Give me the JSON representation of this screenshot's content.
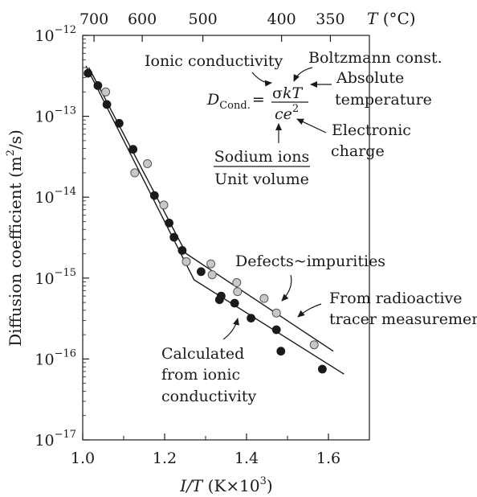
{
  "chart_data": {
    "type": "scatter",
    "title": "",
    "xlabel": "I/T (K×10³)",
    "xlabel_parts": {
      "var": "I/T",
      "unit_pre": " (K×10",
      "unit_sup": "3",
      "unit_post": ")"
    },
    "ylabel": "Diffusion coefficient (m²/s)",
    "ylabel_parts": {
      "pre": "Diffusion coefficient (m",
      "sup": "2",
      "post": "/s)"
    },
    "top_axis_label": "T (°C)",
    "top_axis_label_parts": {
      "var": "T",
      "unit": " (°C)"
    },
    "x_scale": "linear",
    "y_scale": "log",
    "xlim": [
      1.0,
      1.7
    ],
    "ylim": [
      1e-17,
      1e-12
    ],
    "x_ticks": [
      {
        "value": 1.0,
        "label": "1.0"
      },
      {
        "value": 1.2,
        "label": "1.2"
      },
      {
        "value": 1.4,
        "label": "1.4"
      },
      {
        "value": 1.6,
        "label": "1.6"
      }
    ],
    "y_ticks": [
      {
        "value": 1e-12,
        "base": "10",
        "exp": "−12"
      },
      {
        "value": 1e-13,
        "base": "10",
        "exp": "−13"
      },
      {
        "value": 1e-14,
        "base": "10",
        "exp": "−14"
      },
      {
        "value": 1e-15,
        "base": "10",
        "exp": "−15"
      },
      {
        "value": 1e-16,
        "base": "10",
        "exp": "−16"
      },
      {
        "value": 1e-17,
        "base": "10",
        "exp": "−17"
      }
    ],
    "top_ticks": [
      {
        "celsius": 700,
        "label": "700"
      },
      {
        "celsius": 600,
        "label": "600"
      },
      {
        "celsius": 500,
        "label": "500"
      },
      {
        "celsius": 400,
        "label": "400"
      },
      {
        "celsius": 350,
        "label": "350"
      }
    ],
    "grid": false,
    "series": [
      {
        "name": "From radioactive tracer measurement",
        "marker": "open-gray-circle",
        "color": "#c8c8c8",
        "points": [
          {
            "x": 1.056,
            "y": 2e-13
          },
          {
            "x": 1.127,
            "y": 2e-14
          },
          {
            "x": 1.158,
            "y": 2.6e-14
          },
          {
            "x": 1.198,
            "y": 8e-15
          },
          {
            "x": 1.253,
            "y": 1.6e-15
          },
          {
            "x": 1.313,
            "y": 1.5e-15
          },
          {
            "x": 1.316,
            "y": 1.1e-15
          },
          {
            "x": 1.376,
            "y": 8.8e-16
          },
          {
            "x": 1.378,
            "y": 6.8e-16
          },
          {
            "x": 1.443,
            "y": 5.6e-16
          },
          {
            "x": 1.473,
            "y": 3.7e-16
          },
          {
            "x": 1.565,
            "y": 1.5e-16
          }
        ]
      },
      {
        "name": "Calculated from ionic conductivity",
        "marker": "filled-black-circle",
        "color": "#1a1a1a",
        "points": [
          {
            "x": 1.013,
            "y": 3.4e-13
          },
          {
            "x": 1.037,
            "y": 2.4e-13
          },
          {
            "x": 1.059,
            "y": 1.4e-13
          },
          {
            "x": 1.089,
            "y": 8.2e-14
          },
          {
            "x": 1.123,
            "y": 3.9e-14
          },
          {
            "x": 1.175,
            "y": 1.05e-14
          },
          {
            "x": 1.211,
            "y": 4.8e-15
          },
          {
            "x": 1.223,
            "y": 3.2e-15
          },
          {
            "x": 1.243,
            "y": 2.2e-15
          },
          {
            "x": 1.289,
            "y": 1.2e-15
          },
          {
            "x": 1.338,
            "y": 6e-16
          },
          {
            "x": 1.334,
            "y": 5.4e-16
          },
          {
            "x": 1.371,
            "y": 4.9e-16
          },
          {
            "x": 1.411,
            "y": 3.2e-16
          },
          {
            "x": 1.473,
            "y": 2.3e-16
          },
          {
            "x": 1.484,
            "y": 1.25e-16
          },
          {
            "x": 1.585,
            "y": 7.5e-17
          }
        ]
      }
    ],
    "fit_lines": [
      {
        "name": "tracer-fit",
        "points": [
          {
            "x": 1.015,
            "y": 4e-13
          },
          {
            "x": 1.253,
            "y": 2e-15
          },
          {
            "x": 1.612,
            "y": 1.25e-16
          }
        ]
      },
      {
        "name": "conductivity-fit",
        "points": [
          {
            "x": 1.008,
            "y": 4.2e-13
          },
          {
            "x": 1.272,
            "y": 9.5e-16
          },
          {
            "x": 1.638,
            "y": 6.5e-17
          }
        ]
      }
    ],
    "annotations": {
      "defects": "Defects~impurities",
      "tracer_line1": "From radioactive",
      "tracer_line2": "tracer measurement",
      "calc_line1": "Calculated",
      "calc_line2": "from ionic",
      "calc_line3": "conductivity",
      "ionic_conductivity": "Ionic conductivity",
      "boltzmann": "Boltzmann const.",
      "absolute_line1": "Absolute",
      "absolute_line2": "temperature",
      "electronic_line1": "Electronic",
      "electronic_line2": "charge",
      "sodium_numerator": "Sodium ions",
      "sodium_denominator": "Unit volume"
    },
    "equation": {
      "lhs_var": "D",
      "lhs_sub": "Cond.",
      "equals": "=",
      "num_sigma": "σ",
      "num_kT": "kT",
      "den_ce": "ce",
      "den_exp": "2"
    }
  }
}
